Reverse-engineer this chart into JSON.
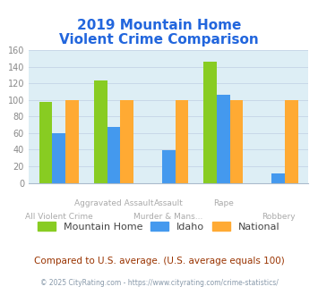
{
  "title_line1": "2019 Mountain Home",
  "title_line2": "Violent Crime Comparison",
  "title_color": "#2266dd",
  "categories": [
    "All Violent Crime",
    "Aggravated Assault",
    "Murder & Mans...",
    "Rape",
    "Robbery"
  ],
  "cat_top": [
    "",
    "Aggravated Assault",
    "Assault",
    "Rape",
    ""
  ],
  "cat_bottom": [
    "All Violent Crime",
    "",
    "Murder & Mans...",
    "",
    "Robbery"
  ],
  "mountain_home": [
    98,
    124,
    0,
    146,
    0
  ],
  "idaho": [
    60,
    67,
    39,
    106,
    11
  ],
  "national": [
    100,
    100,
    100,
    100,
    100
  ],
  "colors": {
    "mountain_home": "#88cc22",
    "idaho": "#4499ee",
    "national": "#ffaa33"
  },
  "ylim": [
    0,
    160
  ],
  "yticks": [
    0,
    20,
    40,
    60,
    80,
    100,
    120,
    140,
    160
  ],
  "plot_bg": "#ddeef5",
  "subtitle": "Compared to U.S. average. (U.S. average equals 100)",
  "subtitle_color": "#993300",
  "footer": "© 2025 CityRating.com - https://www.cityrating.com/crime-statistics/",
  "footer_color": "#8899aa",
  "footer_link_color": "#4488cc",
  "legend_labels": [
    "Mountain Home",
    "Idaho",
    "National"
  ],
  "label_color": "#aaaaaa",
  "tick_color": "#888888"
}
